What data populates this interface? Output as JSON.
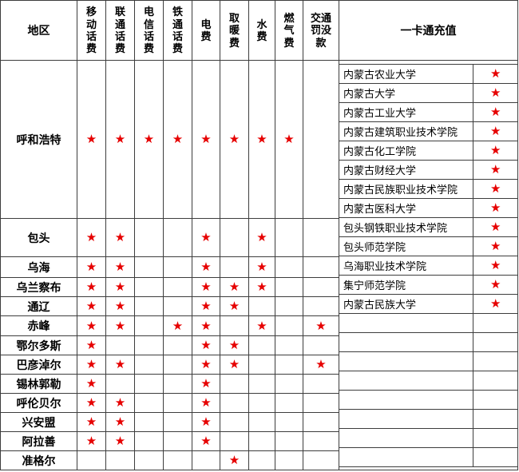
{
  "header": {
    "region_label": "地区",
    "service_columns": [
      "移\n动\n话\n费",
      "联\n通\n话\n费",
      "电\n信\n话\n费",
      "铁\n通\n话\n费",
      "电\n费",
      "取\n暖\n费",
      "水\n费",
      "燃\n气\n费",
      "交通\n罚没\n款"
    ],
    "card_recharge_label": "一卡通充值"
  },
  "service_column_names": [
    "移动话费",
    "联通话费",
    "电信话费",
    "铁通话费",
    "电费",
    "取暖费",
    "水费",
    "燃气费",
    "交通罚没款"
  ],
  "regions": [
    {
      "region": "呼和浩特",
      "stars": [
        1,
        1,
        1,
        1,
        1,
        1,
        1,
        1,
        0
      ]
    },
    {
      "region": "包头",
      "stars": [
        1,
        1,
        0,
        0,
        1,
        0,
        1,
        0,
        0
      ]
    },
    {
      "region": "乌海",
      "stars": [
        1,
        1,
        0,
        0,
        1,
        0,
        1,
        0,
        0
      ]
    },
    {
      "region": "乌兰察布",
      "stars": [
        1,
        1,
        0,
        0,
        1,
        1,
        1,
        0,
        0
      ]
    },
    {
      "region": "通辽",
      "stars": [
        1,
        1,
        0,
        0,
        1,
        1,
        0,
        0,
        0
      ]
    },
    {
      "region": "赤峰",
      "stars": [
        1,
        1,
        0,
        1,
        1,
        0,
        1,
        0,
        1
      ]
    },
    {
      "region": "鄂尔多斯",
      "stars": [
        1,
        0,
        0,
        0,
        1,
        1,
        0,
        0,
        0
      ]
    },
    {
      "region": "巴彦淖尔",
      "stars": [
        1,
        1,
        0,
        0,
        1,
        1,
        0,
        0,
        1
      ]
    },
    {
      "region": "锡林郭勒",
      "stars": [
        1,
        0,
        0,
        0,
        1,
        0,
        0,
        0,
        0
      ]
    },
    {
      "region": "呼伦贝尔",
      "stars": [
        1,
        1,
        0,
        0,
        1,
        0,
        0,
        0,
        0
      ]
    },
    {
      "region": "兴安盟",
      "stars": [
        1,
        1,
        0,
        0,
        1,
        0,
        0,
        0,
        0
      ]
    },
    {
      "region": "阿拉善",
      "stars": [
        1,
        1,
        0,
        0,
        1,
        0,
        0,
        0,
        0
      ]
    },
    {
      "region": "准格尔",
      "stars": [
        0,
        0,
        0,
        0,
        0,
        1,
        0,
        0,
        0
      ]
    }
  ],
  "card_recharge_rows": [
    {
      "name": "内蒙古农业大学",
      "star": 1
    },
    {
      "name": "内蒙古大学",
      "star": 1
    },
    {
      "name": "内蒙古工业大学",
      "star": 1
    },
    {
      "name": "内蒙古建筑职业技术学院",
      "star": 1
    },
    {
      "name": "内蒙古化工学院",
      "star": 1
    },
    {
      "name": "内蒙古财经大学",
      "star": 1
    },
    {
      "name": "内蒙古民族职业技术学院",
      "star": 1
    },
    {
      "name": "内蒙古医科大学",
      "star": 1
    },
    {
      "name": "包头钢铁职业技术学院",
      "star": 1
    },
    {
      "name": "包头师范学院",
      "star": 1
    },
    {
      "name": "乌海职业技术学院",
      "star": 1
    },
    {
      "name": "集宁师范学院",
      "star": 1
    },
    {
      "name": "内蒙古民族大学",
      "star": 1
    },
    {
      "name": "",
      "star": 0
    },
    {
      "name": "",
      "star": 0
    },
    {
      "name": "",
      "star": 0
    },
    {
      "name": "",
      "star": 0
    },
    {
      "name": "",
      "star": 0
    },
    {
      "name": "",
      "star": 0
    },
    {
      "name": "",
      "star": 0
    },
    {
      "name": "",
      "star": 0
    }
  ],
  "star_glyph": "★",
  "colors": {
    "star": "#e60000",
    "border": "#3d3d3d",
    "text": "#000000",
    "background": "#ffffff"
  }
}
